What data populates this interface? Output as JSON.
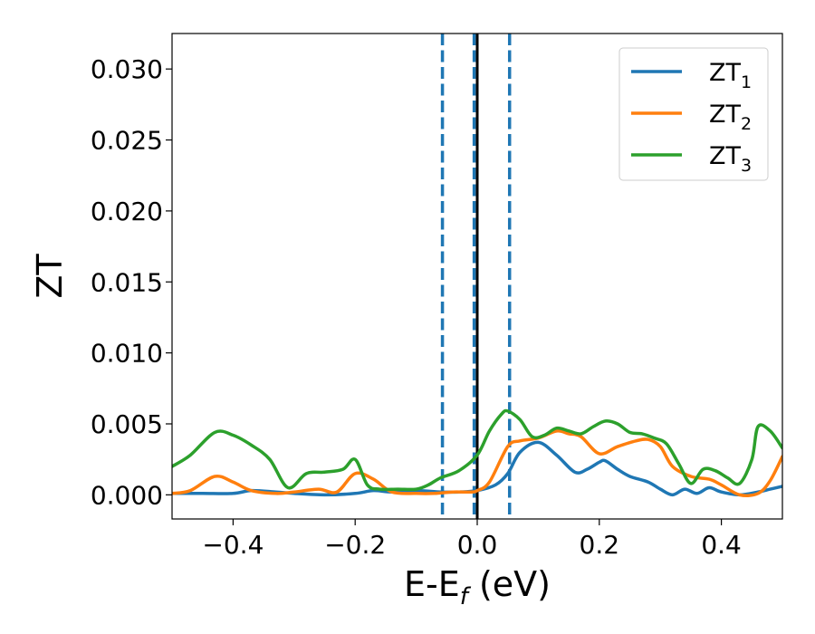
{
  "chart_data": {
    "type": "line",
    "title": "",
    "xlabel": {
      "main": "E-E",
      "sub": "f",
      "suffix": " (eV)"
    },
    "ylabel": "ZT",
    "xlim": [
      -0.5,
      0.5
    ],
    "ylim": [
      -0.0017,
      0.0325
    ],
    "xticks": [
      -0.4,
      -0.2,
      0.0,
      0.2,
      0.4
    ],
    "xtick_labels": [
      "−0.4",
      "−0.2",
      "0.0",
      "0.2",
      "0.4"
    ],
    "yticks": [
      0.0,
      0.005,
      0.01,
      0.015,
      0.02,
      0.025,
      0.03
    ],
    "ytick_labels": [
      "0.000",
      "0.005",
      "0.010",
      "0.015",
      "0.020",
      "0.025",
      "0.030"
    ],
    "grid": false,
    "legend_position": "top-right",
    "vlines": [
      {
        "x": -0.057,
        "style": "dashed",
        "color": "#1f77b4"
      },
      {
        "x": -0.005,
        "style": "dashed",
        "color": "#1f77b4"
      },
      {
        "x": 0.053,
        "style": "dashed",
        "color": "#1f77b4"
      },
      {
        "x": 0.0,
        "style": "solid",
        "color": "#000000"
      }
    ],
    "series": [
      {
        "name": "ZT",
        "sub": "1",
        "color": "#1f77b4",
        "x": [
          -0.5,
          -0.45,
          -0.4,
          -0.37,
          -0.33,
          -0.3,
          -0.25,
          -0.2,
          -0.17,
          -0.14,
          -0.1,
          -0.06,
          -0.03,
          0.0,
          0.03,
          0.05,
          0.07,
          0.1,
          0.13,
          0.16,
          0.18,
          0.2,
          0.21,
          0.23,
          0.25,
          0.28,
          0.3,
          0.32,
          0.34,
          0.36,
          0.38,
          0.4,
          0.43,
          0.46,
          0.48,
          0.5
        ],
        "y": [
          0.0001,
          0.0001,
          0.0001,
          0.0003,
          0.0002,
          0.0001,
          0.0,
          0.0001,
          0.0003,
          0.0002,
          0.0003,
          0.0002,
          0.0002,
          0.0003,
          0.0007,
          0.0015,
          0.003,
          0.0037,
          0.0028,
          0.0016,
          0.0018,
          0.0023,
          0.0024,
          0.0018,
          0.0013,
          0.0009,
          0.0004,
          0.0,
          0.0004,
          0.0001,
          0.0005,
          0.0002,
          0.0,
          0.0002,
          0.0004,
          0.0006
        ]
      },
      {
        "name": "ZT",
        "sub": "2",
        "color": "#ff7f0e",
        "x": [
          -0.5,
          -0.47,
          -0.43,
          -0.4,
          -0.37,
          -0.33,
          -0.3,
          -0.26,
          -0.23,
          -0.2,
          -0.17,
          -0.14,
          -0.1,
          -0.07,
          -0.04,
          -0.01,
          0.0,
          0.02,
          0.05,
          0.07,
          0.1,
          0.13,
          0.15,
          0.17,
          0.2,
          0.23,
          0.26,
          0.28,
          0.3,
          0.32,
          0.35,
          0.38,
          0.4,
          0.43,
          0.46,
          0.48,
          0.5
        ],
        "y": [
          0.0001,
          0.0003,
          0.0013,
          0.0009,
          0.0003,
          0.0001,
          0.0002,
          0.0004,
          0.0002,
          0.0015,
          0.0011,
          0.0002,
          0.0001,
          0.0001,
          0.0002,
          0.0002,
          0.0003,
          0.0009,
          0.0034,
          0.0038,
          0.004,
          0.0045,
          0.0043,
          0.0041,
          0.0029,
          0.0034,
          0.0038,
          0.0039,
          0.0034,
          0.002,
          0.0013,
          0.0011,
          0.0007,
          0.0,
          0.0001,
          0.001,
          0.0027
        ]
      },
      {
        "name": "ZT",
        "sub": "3",
        "color": "#2ca02c",
        "x": [
          -0.5,
          -0.47,
          -0.43,
          -0.4,
          -0.37,
          -0.34,
          -0.31,
          -0.28,
          -0.25,
          -0.22,
          -0.2,
          -0.18,
          -0.16,
          -0.13,
          -0.1,
          -0.08,
          -0.06,
          -0.03,
          0.0,
          0.02,
          0.04,
          0.05,
          0.07,
          0.09,
          0.11,
          0.13,
          0.15,
          0.17,
          0.19,
          0.21,
          0.23,
          0.25,
          0.27,
          0.29,
          0.31,
          0.33,
          0.35,
          0.37,
          0.39,
          0.41,
          0.43,
          0.45,
          0.46,
          0.48,
          0.5
        ],
        "y": [
          0.002,
          0.0028,
          0.0044,
          0.0042,
          0.0035,
          0.0025,
          0.0005,
          0.0015,
          0.0016,
          0.0018,
          0.0025,
          0.0007,
          0.0004,
          0.0004,
          0.0004,
          0.0007,
          0.0012,
          0.0017,
          0.0028,
          0.0045,
          0.0057,
          0.0059,
          0.0053,
          0.0041,
          0.0042,
          0.0047,
          0.0045,
          0.0043,
          0.0048,
          0.0052,
          0.005,
          0.0044,
          0.0043,
          0.004,
          0.0036,
          0.0022,
          0.0008,
          0.0018,
          0.0017,
          0.0012,
          0.0008,
          0.0025,
          0.0048,
          0.0045,
          0.0033
        ]
      }
    ]
  }
}
